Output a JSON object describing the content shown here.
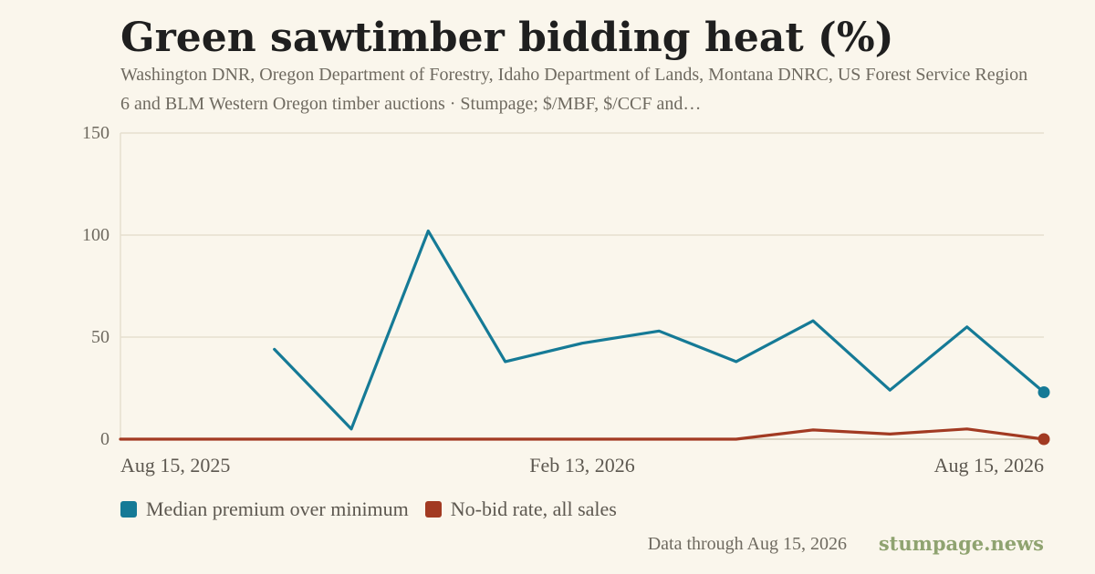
{
  "title": "Green sawtimber bidding heat (%)",
  "subtitle": "Washington DNR, Oregon Department of Forestry, Idaho Department of Lands, Montana DNRC, US Forest Service Region 6 and BLM Western Oregon timber auctions · Stumpage; $/MBF, $/CCF and…",
  "footer_note": "Data through Aug 15, 2026",
  "brand": "stumpage.news",
  "legend": [
    {
      "label": "Median premium over minimum",
      "color": "#157a96"
    },
    {
      "label": "No-bid rate, all sales",
      "color": "#a23a22"
    }
  ],
  "chart_data": {
    "type": "line",
    "ylim": [
      0,
      150
    ],
    "yticks": [
      0,
      50,
      100,
      150
    ],
    "x_tick_labels": [
      {
        "label": "Aug 15, 2025",
        "index": 0
      },
      {
        "label": "Feb 13, 2026",
        "index": 6
      },
      {
        "label": "Aug 15, 2026",
        "index": 12
      }
    ],
    "x": [
      "Aug 15, 2025",
      "Sep 14, 2025",
      "Oct 15, 2025",
      "Nov 14, 2025",
      "Dec 15, 2025",
      "Jan 14, 2026",
      "Feb 13, 2026",
      "Mar 15, 2026",
      "Apr 15, 2026",
      "May 15, 2026",
      "Jun 15, 2026",
      "Jul 15, 2026",
      "Aug 15, 2026"
    ],
    "grid": true,
    "legend_position": "bottom-left",
    "series": [
      {
        "name": "Median premium over minimum",
        "color": "#157a96",
        "values": [
          null,
          null,
          44,
          5,
          102,
          38,
          47,
          53,
          38,
          58,
          24,
          55,
          23
        ]
      },
      {
        "name": "No-bid rate, all sales",
        "color": "#a23a22",
        "values": [
          0,
          0,
          0,
          0,
          0,
          0,
          0,
          0,
          0,
          4.5,
          2.5,
          5,
          0
        ]
      }
    ]
  }
}
